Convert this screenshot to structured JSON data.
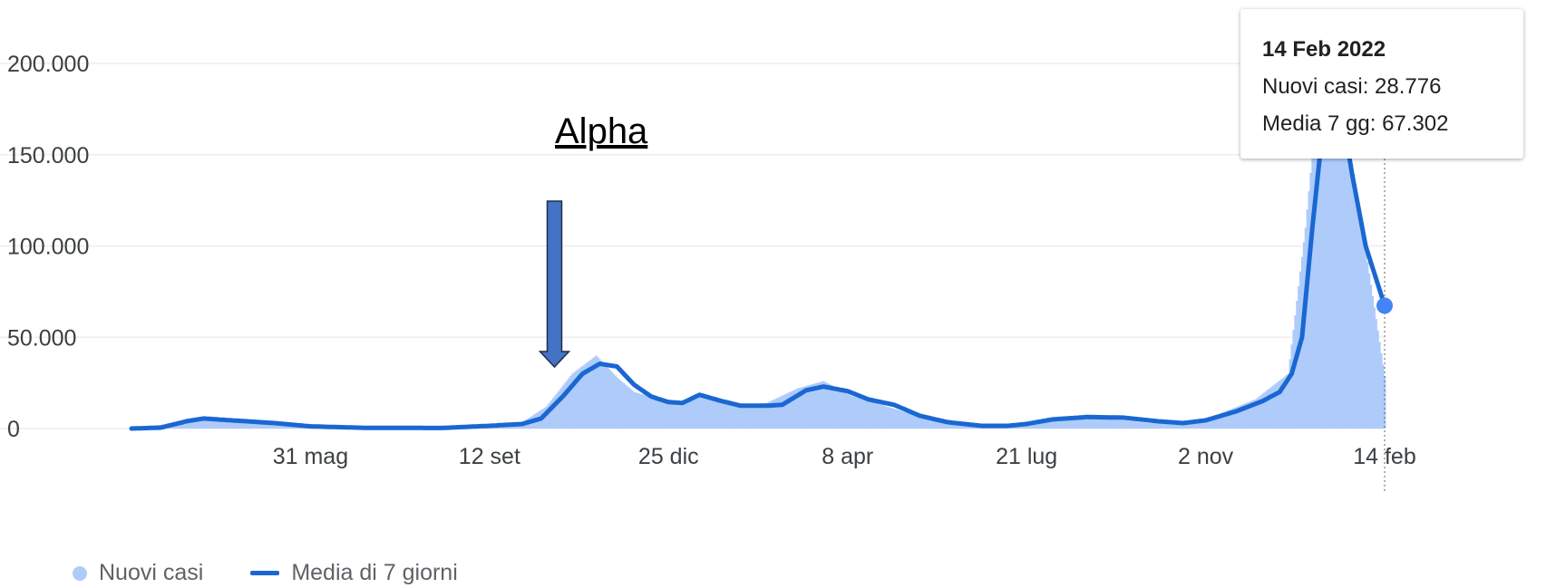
{
  "colors": {
    "bars": "#aecbfa",
    "line": "#1a67d2",
    "grid": "#eeeeee",
    "arrow_fill": "#4472c4",
    "arrow_stroke": "#1f2d4d"
  },
  "chart_data": {
    "type": "area",
    "x_unit": "date",
    "x_range": [
      "2020-02-17",
      "2022-02-14"
    ],
    "ylim": [
      0,
      200000
    ],
    "y_ticks": [
      {
        "value": 0,
        "label": "0"
      },
      {
        "value": 50000,
        "label": "50.000"
      },
      {
        "value": 100000,
        "label": "100.000"
      },
      {
        "value": 150000,
        "label": "150.000"
      },
      {
        "value": 200000,
        "label": "200.000"
      }
    ],
    "x_ticks": [
      {
        "date": "2020-05-31",
        "label": "31 mag"
      },
      {
        "date": "2020-09-12",
        "label": "12 set"
      },
      {
        "date": "2020-12-25",
        "label": "25 dic"
      },
      {
        "date": "2021-04-08",
        "label": "8 apr"
      },
      {
        "date": "2021-07-21",
        "label": "21 lug"
      },
      {
        "date": "2021-11-02",
        "label": "2 nov"
      },
      {
        "date": "2022-02-14",
        "label": "14 feb"
      }
    ],
    "grid": true,
    "legend_position": "bottom-left",
    "series": [
      {
        "name": "Nuovi casi",
        "kind": "bar",
        "points": [
          [
            "2020-02-17",
            500
          ],
          [
            "2020-03-10",
            2500
          ],
          [
            "2020-03-27",
            6000
          ],
          [
            "2020-04-15",
            4200
          ],
          [
            "2020-05-10",
            2500
          ],
          [
            "2020-06-10",
            800
          ],
          [
            "2020-08-01",
            400
          ],
          [
            "2020-09-10",
            1500
          ],
          [
            "2020-10-01",
            3500
          ],
          [
            "2020-10-15",
            12000
          ],
          [
            "2020-10-30",
            30000
          ],
          [
            "2020-11-13",
            40000
          ],
          [
            "2020-11-25",
            28000
          ],
          [
            "2020-12-05",
            20000
          ],
          [
            "2020-12-20",
            16000
          ],
          [
            "2021-01-01",
            13000
          ],
          [
            "2021-01-15",
            19000
          ],
          [
            "2021-02-01",
            13000
          ],
          [
            "2021-02-20",
            14000
          ],
          [
            "2021-03-10",
            22000
          ],
          [
            "2021-03-25",
            26000
          ],
          [
            "2021-04-10",
            18000
          ],
          [
            "2021-05-01",
            12000
          ],
          [
            "2021-05-25",
            5000
          ],
          [
            "2021-06-15",
            2000
          ],
          [
            "2021-07-21",
            2500
          ],
          [
            "2021-08-10",
            6500
          ],
          [
            "2021-09-01",
            6000
          ],
          [
            "2021-10-01",
            3000
          ],
          [
            "2021-11-02",
            5000
          ],
          [
            "2021-12-01",
            16000
          ],
          [
            "2021-12-20",
            30000
          ],
          [
            "2021-12-30",
            110000
          ],
          [
            "2022-01-10",
            220000
          ],
          [
            "2022-01-20",
            180000
          ],
          [
            "2022-02-01",
            110000
          ],
          [
            "2022-02-14",
            28776
          ]
        ]
      },
      {
        "name": "Media di 7 giorni",
        "kind": "line",
        "points": [
          [
            "2020-02-17",
            0
          ],
          [
            "2020-03-05",
            500
          ],
          [
            "2020-03-20",
            4000
          ],
          [
            "2020-03-30",
            5500
          ],
          [
            "2020-04-15",
            4500
          ],
          [
            "2020-05-10",
            3000
          ],
          [
            "2020-05-31",
            1200
          ],
          [
            "2020-07-01",
            400
          ],
          [
            "2020-08-15",
            300
          ],
          [
            "2020-09-12",
            1500
          ],
          [
            "2020-10-01",
            2500
          ],
          [
            "2020-10-12",
            5500
          ],
          [
            "2020-10-25",
            18000
          ],
          [
            "2020-11-05",
            30000
          ],
          [
            "2020-11-15",
            35500
          ],
          [
            "2020-11-25",
            34000
          ],
          [
            "2020-12-05",
            24000
          ],
          [
            "2020-12-15",
            17500
          ],
          [
            "2020-12-25",
            14500
          ],
          [
            "2021-01-02",
            14000
          ],
          [
            "2021-01-12",
            18500
          ],
          [
            "2021-01-25",
            15000
          ],
          [
            "2021-02-05",
            12500
          ],
          [
            "2021-02-20",
            12500
          ],
          [
            "2021-03-01",
            13000
          ],
          [
            "2021-03-15",
            21000
          ],
          [
            "2021-03-25",
            23000
          ],
          [
            "2021-04-08",
            20500
          ],
          [
            "2021-04-20",
            16000
          ],
          [
            "2021-05-05",
            13000
          ],
          [
            "2021-05-20",
            7000
          ],
          [
            "2021-06-05",
            3500
          ],
          [
            "2021-06-25",
            1500
          ],
          [
            "2021-07-10",
            1500
          ],
          [
            "2021-07-21",
            2500
          ],
          [
            "2021-08-05",
            5000
          ],
          [
            "2021-08-25",
            6300
          ],
          [
            "2021-09-15",
            6000
          ],
          [
            "2021-10-05",
            4000
          ],
          [
            "2021-10-20",
            3000
          ],
          [
            "2021-11-02",
            4500
          ],
          [
            "2021-11-20",
            9500
          ],
          [
            "2021-12-05",
            15000
          ],
          [
            "2021-12-15",
            20000
          ],
          [
            "2021-12-22",
            30000
          ],
          [
            "2021-12-28",
            50000
          ],
          [
            "2022-01-03",
            110000
          ],
          [
            "2022-01-08",
            155000
          ],
          [
            "2022-01-14",
            185000
          ],
          [
            "2022-01-20",
            175000
          ],
          [
            "2022-01-26",
            140000
          ],
          [
            "2022-02-03",
            100000
          ],
          [
            "2022-02-14",
            67302
          ]
        ]
      }
    ],
    "annotations": [
      {
        "text": "Alpha",
        "date": "2020-10-25",
        "arrow": "down"
      }
    ],
    "tooltip": {
      "date": "14 Feb 2022",
      "rows": [
        "Nuovi casi: 28.776",
        "Media 7 gg: 67.302"
      ]
    }
  }
}
